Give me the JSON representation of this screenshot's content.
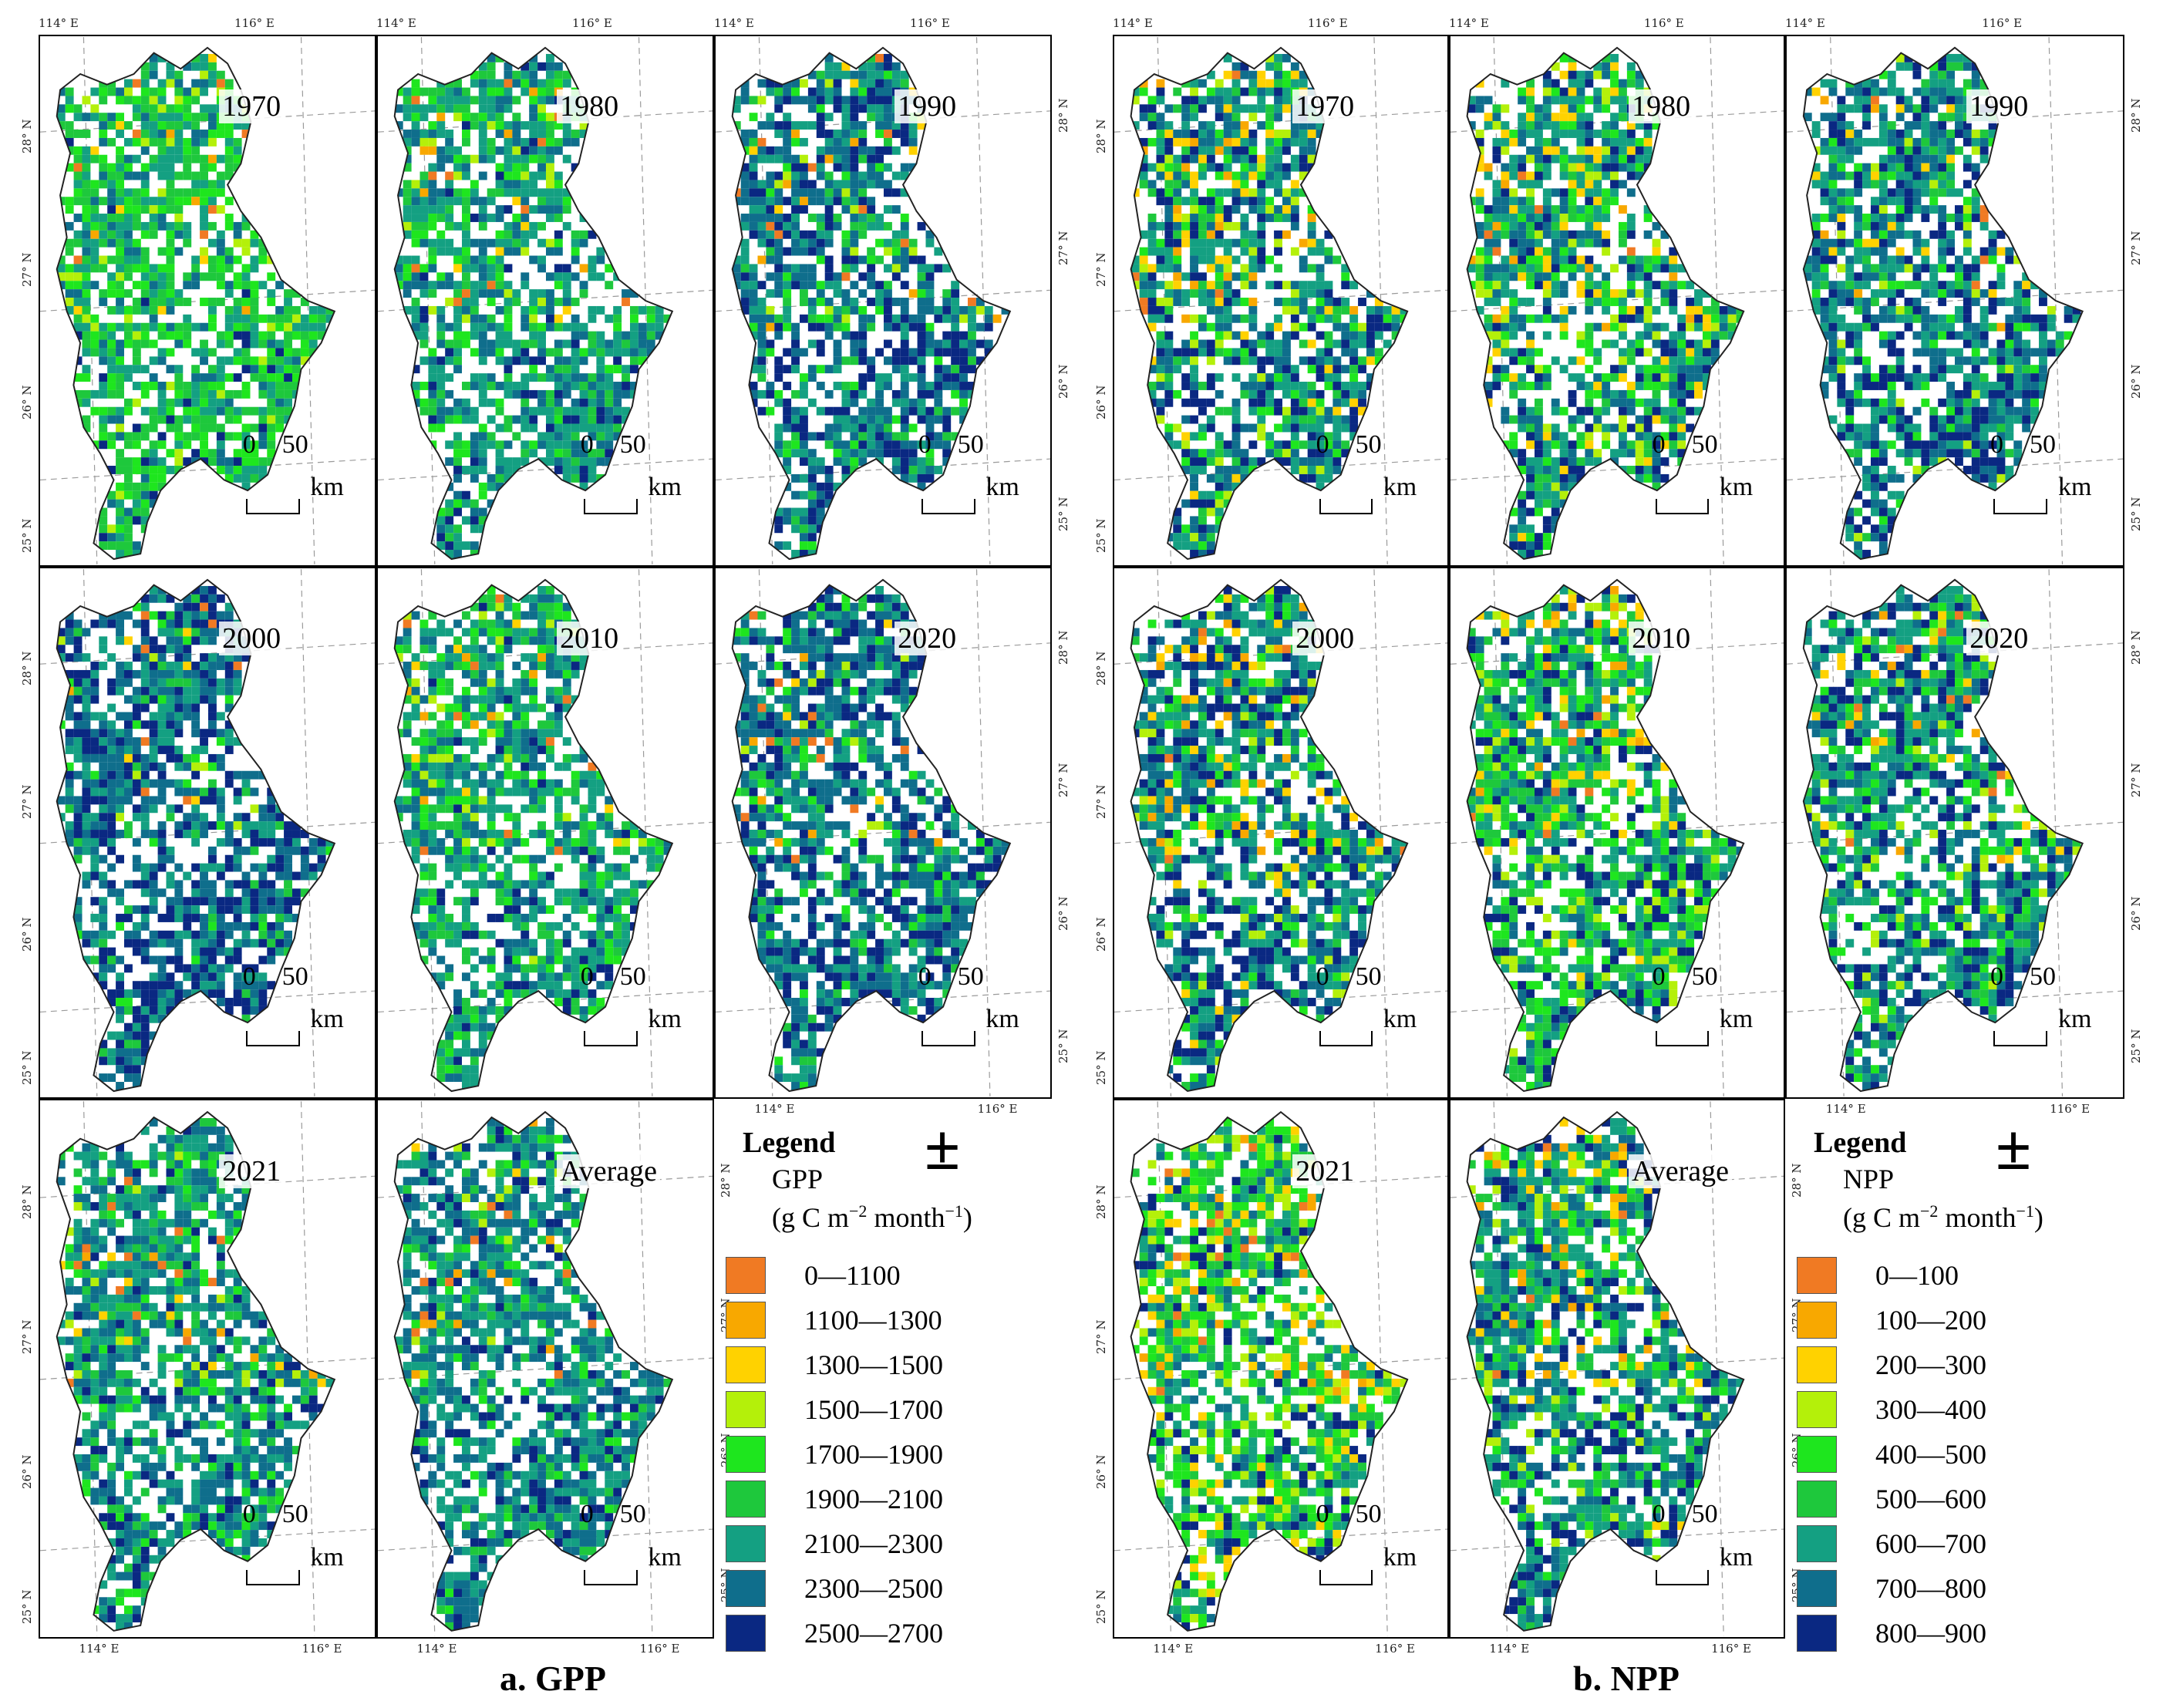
{
  "coord_labels": {
    "lon_114": "114° E",
    "lon_116": "116° E",
    "lat_25": "25° N",
    "lat_26": "26° N",
    "lat_27": "27° N",
    "lat_28": "28° N"
  },
  "scalebar": {
    "zero": "0",
    "fifty": "50",
    "unit": "km"
  },
  "gpp": {
    "caption": "a. GPP",
    "panels": [
      "1970",
      "1980",
      "1990",
      "2000",
      "2010",
      "2020",
      "2021",
      "Average"
    ],
    "legend": {
      "title": "Legend",
      "variable": "GPP",
      "unit_prefix": "(g C m",
      "unit_exp1": "−2",
      "unit_mid": " month",
      "unit_exp2": "−1",
      "unit_suffix": ")",
      "north_symbol": "±",
      "classes": [
        {
          "label": "0—1100",
          "color": "#f07a23"
        },
        {
          "label": "1100—1300",
          "color": "#f8a800"
        },
        {
          "label": "1300—1500",
          "color": "#ffd200"
        },
        {
          "label": "1500—1700",
          "color": "#b4f00a"
        },
        {
          "label": "1700—1900",
          "color": "#1ee61e"
        },
        {
          "label": "1900—2100",
          "color": "#1ec83c"
        },
        {
          "label": "2100—2300",
          "color": "#14a082"
        },
        {
          "label": "2300—2500",
          "color": "#0f6e8c"
        },
        {
          "label": "2500—2700",
          "color": "#0a2882"
        }
      ]
    }
  },
  "npp": {
    "caption": "b. NPP",
    "panels": [
      "1970",
      "1980",
      "1990",
      "2000",
      "2010",
      "2020",
      "2021",
      "Average"
    ],
    "legend": {
      "title": "Legend",
      "variable": "NPP",
      "unit_prefix": "(g C m",
      "unit_exp1": "−2",
      "unit_mid": " month",
      "unit_exp2": "−1",
      "unit_suffix": ")",
      "north_symbol": "±",
      "classes": [
        {
          "label": "0—100",
          "color": "#f07a23"
        },
        {
          "label": "100—200",
          "color": "#f8a800"
        },
        {
          "label": "200—300",
          "color": "#ffd200"
        },
        {
          "label": "300—400",
          "color": "#b4f00a"
        },
        {
          "label": "400—500",
          "color": "#1ee61e"
        },
        {
          "label": "500—600",
          "color": "#1ec83c"
        },
        {
          "label": "600—700",
          "color": "#14a082"
        },
        {
          "label": "700—800",
          "color": "#0f6e8c"
        },
        {
          "label": "800—900",
          "color": "#0a2882"
        }
      ]
    }
  }
}
